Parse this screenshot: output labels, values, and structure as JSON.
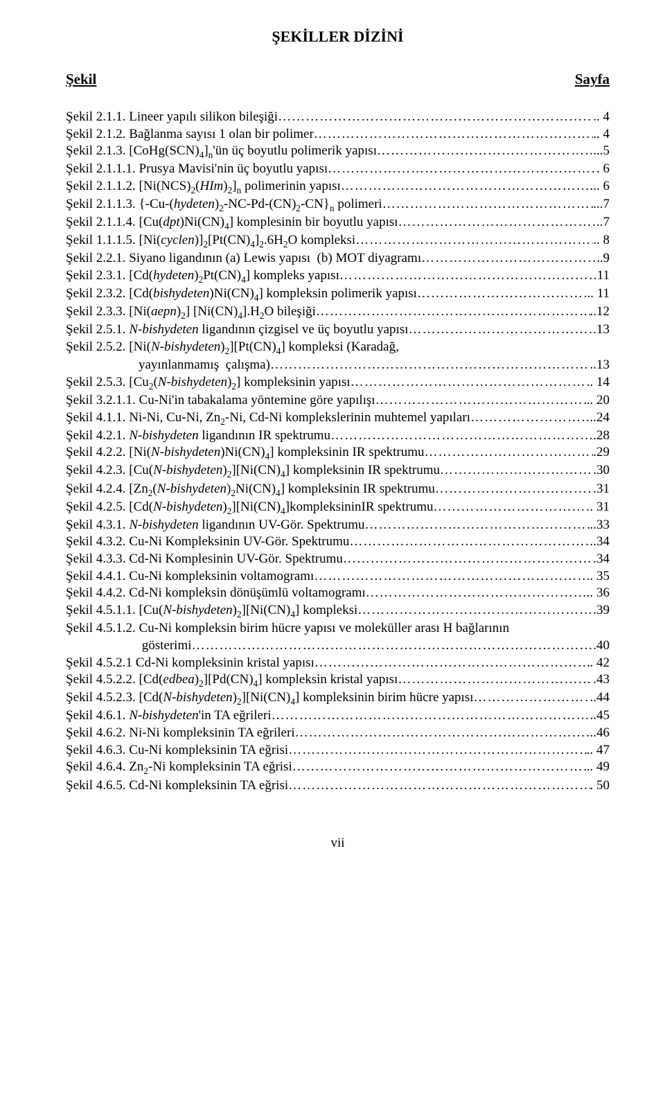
{
  "page_title": "ŞEKİLLER DİZİNİ",
  "col_left": "Şekil",
  "col_right": "Sayfa",
  "footer": "vii",
  "entries": [
    {
      "label": "Şekil 2.1.1. Lineer yapılı silikon bileşiği",
      "page": ".. 4",
      "indent": false
    },
    {
      "label": "Şekil 2.1.2. Bağlanma sayısı 1 olan bir polimer",
      "page": ".. 4",
      "indent": false
    },
    {
      "label": "Şekil 2.1.3. [CoHg(SCN)₄]ₙ'ün üç boyutlu polimerik yapısı",
      "page": "...5",
      "indent": false
    },
    {
      "label": "Şekil 2.1.1.1. Prusya Mavisi'nin üç boyutlu yapısı",
      "page": ". 6",
      "indent": false
    },
    {
      "label": "Şekil 2.1.1.2. [Ni(NCS)₂(HIm)₂]ₙ polimerinin yapısı",
      "page": "... 6",
      "indent": false
    },
    {
      "label": "Şekil 2.1.1.3. {-Cu-(hydeten)₂-NC-Pd-(CN)₂-CN}ₙ polimeri",
      "page": "...7",
      "indent": false
    },
    {
      "label": "Şekil 2.1.1.4. [Cu(dpt)Ni(CN)₄] komplesinin bir boyutlu yapısı",
      "page": "..7",
      "indent": false
    },
    {
      "label": "Şekil 1.1.1.5. [Ni(cyclen)]₂[Pt(CN)₄]₂.6H₂O kompleksi",
      "page": ".. 8",
      "indent": false
    },
    {
      "label": "Şekil 2.2.1. Siyano ligandının (a) Lewis yapısı  (b) MOT diyagramı",
      "page": ".9",
      "indent": false
    },
    {
      "label": "Şekil 2.3.1. [Cd(hydeten)₂Pt(CN)₄] kompleks yapısı",
      "page": ".11",
      "indent": false
    },
    {
      "label": "Şekil 2.3.2. [Cd(bishydeten)Ni(CN)₄] kompleksin polimerik yapısı",
      "page": ".. 11",
      "indent": false
    },
    {
      "label": "Şekil 2.3.3. [Ni(aepn)₂] [Ni(CN)₄].H₂O bileşiği",
      "page": "..12",
      "indent": false
    },
    {
      "label": "Şekil 2.5.1. N-bishydeten ligandının çizgisel ve üç boyutlu yapısı",
      "page": ".13",
      "indent": false
    },
    {
      "label": "Şekil 2.5.2. [Ni(N-bishydeten)₂][Pt(CN)₄] kompleksi (Karadağ,",
      "page": "",
      "indent": false,
      "nodots": true
    },
    {
      "label": "yayınlanmamış  çalışma)",
      "page": "..13",
      "indent": true
    },
    {
      "label": "Şekil 2.5.3. [Cu₂(N-bishydeten)₂] kompleksinin yapısı",
      "page": ".. 14",
      "indent": false
    },
    {
      "label": "Şekil 3.2.1.1. Cu-Ni'in tabakalama yöntemine göre yapılışı",
      "page": ".. 20",
      "indent": false
    },
    {
      "label": "Şekil 4.1.1. Ni-Ni, Cu-Ni, Zn₂-Ni, Cd-Ni komplekslerinin muhtemel yapıları",
      "page": "..24",
      "indent": false
    },
    {
      "label": "Şekil 4.2.1. N-bishydeten ligandının IR spektrumu",
      "page": ".28",
      "indent": false
    },
    {
      "label": "Şekil 4.2.2. [Ni(N-bishydeten)Ni(CN)₄] kompleksinin IR spektrumu",
      "page": ".29",
      "indent": false
    },
    {
      "label": "Şekil 4.2.3. [Cu(N-bishydeten)₂][Ni(CN)₄] kompleksinin IR spektrumu",
      "page": ".30",
      "indent": false
    },
    {
      "label": "Şekil 4.2.4. [Zn₂(N-bishydeten)₂Ni(CN)₄] kompleksinin IR spektrumu",
      "page": ".31",
      "indent": false
    },
    {
      "label": "Şekil 4.2.5. [Cd(N-bishydeten)₂][Ni(CN)₄]kompleksininIR spektrumu",
      "page": ". 31",
      "indent": false
    },
    {
      "label": "Şekil 4.3.1. N-bishydeten ligandının UV-Gör. Spektrumu",
      "page": "..33",
      "indent": false
    },
    {
      "label": "Şekil 4.3.2. Cu-Ni Kompleksinin UV-Gör. Spektrumu",
      "page": "..34",
      "indent": false
    },
    {
      "label": "Şekil 4.3.3. Cd-Ni Komplesinin UV-Gör. Spektrumu",
      "page": ".34",
      "indent": false
    },
    {
      "label": "Şekil 4.4.1. Cu-Ni kompleksinin voltamogramı",
      "page": ". 35",
      "indent": false
    },
    {
      "label": "Şekil 4.4.2. Cd-Ni kompleksin dönüşümlü voltamogramı",
      "page": ".. 36",
      "indent": false
    },
    {
      "label": "Şekil 4.5.1.1. [Cu(N-bishydeten)₂][Ni(CN)₄] kompleksi",
      "page": ".39",
      "indent": false
    },
    {
      "label": "Şekil 4.5.1.2. Cu-Ni kompleksin birim hücre yapısı ve moleküller arası H bağlarının",
      "page": "",
      "indent": false,
      "nodots": true
    },
    {
      "label": " gösterimi",
      "page": ".40",
      "indent": true
    },
    {
      "label": "Şekil 4.5.2.1 Cd-Ni kompleksinin kristal yapısı",
      "page": ". 42",
      "indent": false
    },
    {
      "label": "Şekil 4.5.2.2. [Cd(edbea)₂][Pd(CN)₄] kompleksin kristal yapısı",
      "page": ".43",
      "indent": false
    },
    {
      "label": "Şekil 4.5.2.3. [Cd(N-bishydeten)₂][Ni(CN)₄] kompleksinin birim hücre yapısı",
      "page": "..44",
      "indent": false
    },
    {
      "label": "Şekil 4.6.1. N-bishydeten'in TA eğrileri",
      "page": "..45",
      "indent": false
    },
    {
      "label": "Şekil 4.6.2. Ni-Ni kompleksinin TA eğrileri",
      "page": "..46",
      "indent": false
    },
    {
      "label": "Şekil 4.6.3. Cu-Ni kompleksinin TA eğrisi",
      "page": ".. 47",
      "indent": false
    },
    {
      "label": "Şekil 4.6.4. Zn₂-Ni kompleksinin TA eğrisi",
      "page": ".. 49",
      "indent": false
    },
    {
      "label": "Şekil 4.6.5. Cd-Ni kompleksinin TA eğrisi",
      "page": ". 50",
      "indent": false
    }
  ]
}
